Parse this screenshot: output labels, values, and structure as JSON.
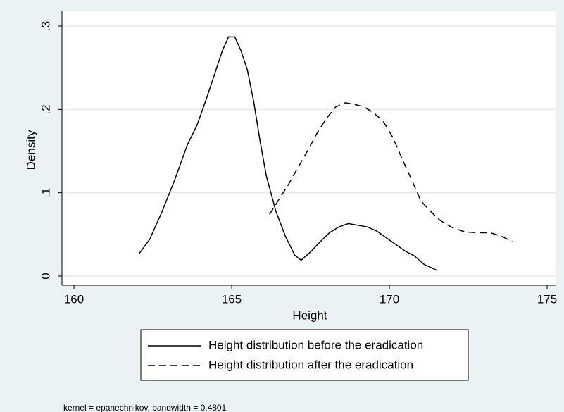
{
  "chart_data": {
    "type": "line",
    "xlabel": "Height",
    "ylabel": "Density",
    "note": "kernel = epanechnikov, bandwidth = 0.4801",
    "xlim": [
      159.62,
      175.29
    ],
    "ylim": [
      -0.011,
      0.3186
    ],
    "xticks": [
      160,
      165,
      170,
      175
    ],
    "yticks": [
      0,
      {
        "value": 0.1,
        "label": ".1"
      },
      {
        "value": 0.2,
        "label": ".2"
      },
      {
        "value": 0.3,
        "label": ".3"
      }
    ],
    "grid": true,
    "legend": "bottom",
    "series": [
      {
        "name": "Height distribution before the eradication",
        "color": "#000000",
        "dash": "solid",
        "x": [
          162.05,
          162.4,
          162.8,
          163.2,
          163.6,
          163.9,
          164.2,
          164.5,
          164.7,
          164.9,
          165.1,
          165.3,
          165.5,
          165.7,
          165.9,
          166.1,
          166.4,
          166.7,
          167.0,
          167.2,
          167.5,
          167.8,
          168.1,
          168.4,
          168.7,
          169.0,
          169.3,
          169.6,
          169.9,
          170.2,
          170.5,
          170.8,
          171.1,
          171.5
        ],
        "values": [
          0.026,
          0.044,
          0.078,
          0.116,
          0.158,
          0.181,
          0.213,
          0.247,
          0.27,
          0.287,
          0.287,
          0.27,
          0.247,
          0.209,
          0.162,
          0.12,
          0.078,
          0.048,
          0.025,
          0.019,
          0.029,
          0.041,
          0.052,
          0.059,
          0.063,
          0.061,
          0.059,
          0.054,
          0.046,
          0.038,
          0.03,
          0.024,
          0.014,
          0.007
        ]
      },
      {
        "name": "Height distribution after the eradication",
        "color": "#000000",
        "dash": "dashed",
        "x": [
          166.2,
          166.5,
          166.8,
          167.1,
          167.4,
          167.7,
          168.0,
          168.3,
          168.6,
          168.9,
          169.2,
          169.5,
          169.8,
          170.1,
          170.4,
          170.7,
          171.0,
          171.3,
          171.6,
          172.0,
          172.4,
          172.8,
          173.2,
          173.6,
          173.9
        ],
        "values": [
          0.074,
          0.092,
          0.11,
          0.13,
          0.15,
          0.171,
          0.189,
          0.203,
          0.208,
          0.206,
          0.203,
          0.196,
          0.186,
          0.167,
          0.141,
          0.116,
          0.09,
          0.078,
          0.067,
          0.058,
          0.053,
          0.052,
          0.052,
          0.047,
          0.041
        ]
      }
    ]
  }
}
